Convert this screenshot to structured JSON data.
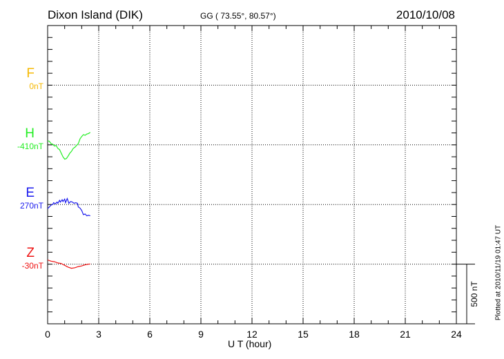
{
  "header": {
    "station": "Dixon Island (DIK)",
    "coords": "GG ( 73.55°,  80.57°)",
    "date": "2010/10/08"
  },
  "footer": {
    "plotted": "Plotted at 2010/11/19 01:47 UT",
    "scale_label": "500 nT"
  },
  "chart_data": {
    "type": "line",
    "xlabel": "U T (hour)",
    "xlim": [
      0,
      24
    ],
    "xticks": [
      "0",
      "3",
      "6",
      "9",
      "12",
      "15",
      "18",
      "21",
      "24"
    ],
    "scale_nT": 500,
    "tick_interval_nT": 100,
    "grid": true,
    "series": [
      {
        "name": "F",
        "baseline": "0nT",
        "color": "#f5b800",
        "points": []
      },
      {
        "name": "H",
        "baseline": "-410nT",
        "color": "#22ee22",
        "points": [
          [
            0,
            35
          ],
          [
            0.1,
            30
          ],
          [
            0.2,
            10
          ],
          [
            0.3,
            5
          ],
          [
            0.4,
            -10
          ],
          [
            0.5,
            -5
          ],
          [
            0.6,
            -30
          ],
          [
            0.7,
            -40
          ],
          [
            0.8,
            -70
          ],
          [
            0.9,
            -100
          ],
          [
            1.0,
            -120
          ],
          [
            1.1,
            -115
          ],
          [
            1.2,
            -95
          ],
          [
            1.3,
            -70
          ],
          [
            1.4,
            -55
          ],
          [
            1.5,
            -30
          ],
          [
            1.6,
            -20
          ],
          [
            1.7,
            -5
          ],
          [
            1.8,
            10
          ],
          [
            1.9,
            50
          ],
          [
            2.0,
            70
          ],
          [
            2.1,
            85
          ],
          [
            2.2,
            80
          ],
          [
            2.3,
            90
          ],
          [
            2.4,
            95
          ],
          [
            2.5,
            105
          ]
        ]
      },
      {
        "name": "E",
        "baseline": "270nT",
        "color": "#1a1aee",
        "points": [
          [
            0,
            -35
          ],
          [
            0.1,
            -20
          ],
          [
            0.2,
            -5
          ],
          [
            0.3,
            0
          ],
          [
            0.35,
            15
          ],
          [
            0.45,
            5
          ],
          [
            0.55,
            20
          ],
          [
            0.6,
            10
          ],
          [
            0.7,
            35
          ],
          [
            0.75,
            20
          ],
          [
            0.85,
            40
          ],
          [
            0.9,
            25
          ],
          [
            1.0,
            45
          ],
          [
            1.05,
            15
          ],
          [
            1.15,
            50
          ],
          [
            1.25,
            10
          ],
          [
            1.35,
            25
          ],
          [
            1.45,
            20
          ],
          [
            1.55,
            10
          ],
          [
            1.65,
            15
          ],
          [
            1.75,
            10
          ],
          [
            1.8,
            -20
          ],
          [
            1.9,
            -30
          ],
          [
            2.0,
            -50
          ],
          [
            2.1,
            -85
          ],
          [
            2.2,
            -80
          ],
          [
            2.3,
            -95
          ],
          [
            2.4,
            -90
          ],
          [
            2.5,
            -95
          ]
        ]
      },
      {
        "name": "Z",
        "baseline": "-30nT",
        "color": "#ee1111",
        "points": [
          [
            0,
            35
          ],
          [
            0.2,
            25
          ],
          [
            0.4,
            20
          ],
          [
            0.6,
            10
          ],
          [
            0.8,
            5
          ],
          [
            1.0,
            -10
          ],
          [
            1.2,
            -25
          ],
          [
            1.4,
            -35
          ],
          [
            1.6,
            -30
          ],
          [
            1.8,
            -20
          ],
          [
            2.0,
            -15
          ],
          [
            2.2,
            -5
          ],
          [
            2.4,
            0
          ],
          [
            2.5,
            2
          ]
        ]
      }
    ]
  }
}
